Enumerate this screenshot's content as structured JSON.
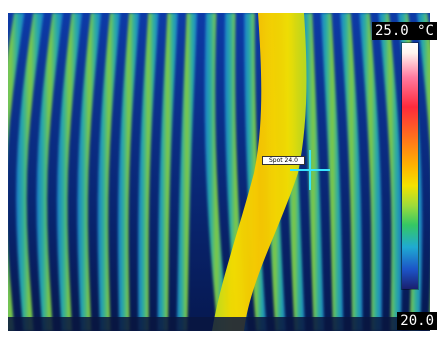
{
  "scale": {
    "max_label": "25.0 °C",
    "min_label": "20.0"
  },
  "spot": {
    "label": "Spot 24.0"
  },
  "palette": {
    "cold": "#0b2a8c",
    "cool": "#1b7fd0",
    "mid": "#2bb3a4",
    "warm_green": "#49c95a",
    "lime": "#8bd33a",
    "hot": "#f2dd00",
    "hotter": "#f7c600",
    "crosshair": "#39e6ff"
  }
}
